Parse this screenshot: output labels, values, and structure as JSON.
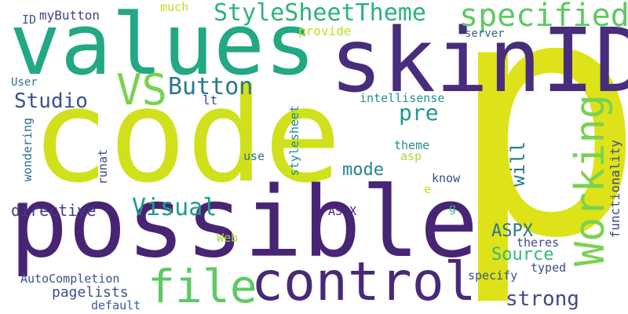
{
  "words": {
    "code": {
      "text": "code",
      "color": "#d0e11c"
    },
    "p": {
      "text": "p",
      "color": "#dde318"
    },
    "possible": {
      "text": "possible",
      "color": "#482475"
    },
    "skinID": {
      "text": "skinID",
      "color": "#472d7b"
    },
    "values": {
      "text": "values",
      "color": "#22a884"
    },
    "control": {
      "text": "control",
      "color": "#482878"
    },
    "working": {
      "text": "Working",
      "color": "#7ad151"
    },
    "file": {
      "text": "file",
      "color": "#5ec962"
    },
    "specified": {
      "text": "specified",
      "color": "#5ec962"
    },
    "stylesheettheme": {
      "text": "StyleSheetTheme",
      "color": "#2db27d"
    },
    "vs": {
      "text": "VS",
      "color": "#7ad151"
    },
    "button": {
      "text": "Button",
      "color": "#2a788e"
    },
    "studio": {
      "text": "Studio",
      "color": "#3b528b"
    },
    "pre": {
      "text": "pre",
      "color": "#1f988b"
    },
    "visual": {
      "text": "Visual",
      "color": "#1f9e89"
    },
    "strong": {
      "text": "strong",
      "color": "#3e4a89"
    },
    "aspx": {
      "text": "ASPX",
      "color": "#2c728e"
    },
    "source": {
      "text": "Source",
      "color": "#35b779"
    },
    "directive": {
      "text": "directive",
      "color": "#443a83"
    },
    "mode": {
      "text": "mode",
      "color": "#26828e"
    },
    "will": {
      "text": "will",
      "color": "#2a788e"
    },
    "functionality": {
      "text": "functionality",
      "color": "#3e4a89"
    },
    "pagelists": {
      "text": "pagelists",
      "color": "#3b528b"
    },
    "autocompletion": {
      "text": "AutoCompletion",
      "color": "#3b528b"
    },
    "mybutton": {
      "text": "myButton",
      "color": "#414487"
    },
    "id": {
      "text": "ID",
      "color": "#39568c"
    },
    "much": {
      "text": "much",
      "color": "#bddf26"
    },
    "provide": {
      "text": "provide",
      "color": "#bddf26"
    },
    "server": {
      "text": "server",
      "color": "#33638d"
    },
    "user": {
      "text": "User",
      "color": "#2c728e"
    },
    "lt": {
      "text": "lt",
      "color": "#3e4a89"
    },
    "intellisense": {
      "text": "intellisense",
      "color": "#21918c"
    },
    "stylesheet": {
      "text": "stylesheet",
      "color": "#25858e"
    },
    "wondering": {
      "text": "wondering",
      "color": "#2e6e8e"
    },
    "runat": {
      "text": "runat",
      "color": "#3e4a89"
    },
    "use": {
      "text": "use",
      "color": "#2c728e"
    },
    "theme": {
      "text": "theme",
      "color": "#228c8d"
    },
    "asp": {
      "text": "asp",
      "color": "#a5db36"
    },
    "know": {
      "text": "know",
      "color": "#3e4a89"
    },
    "e": {
      "text": "e",
      "color": "#c2df23"
    },
    "g": {
      "text": "g",
      "color": "#35b779"
    },
    "ascx": {
      "text": "ASCX",
      "color": "#482878"
    },
    "web": {
      "text": "Web",
      "color": "#9fda3a"
    },
    "theres": {
      "text": "theres",
      "color": "#3e4a89"
    },
    "specify": {
      "text": "specify",
      "color": "#3b528b"
    },
    "typed": {
      "text": "typed",
      "color": "#3e4a89"
    },
    "default": {
      "text": "default",
      "color": "#35608d"
    }
  }
}
